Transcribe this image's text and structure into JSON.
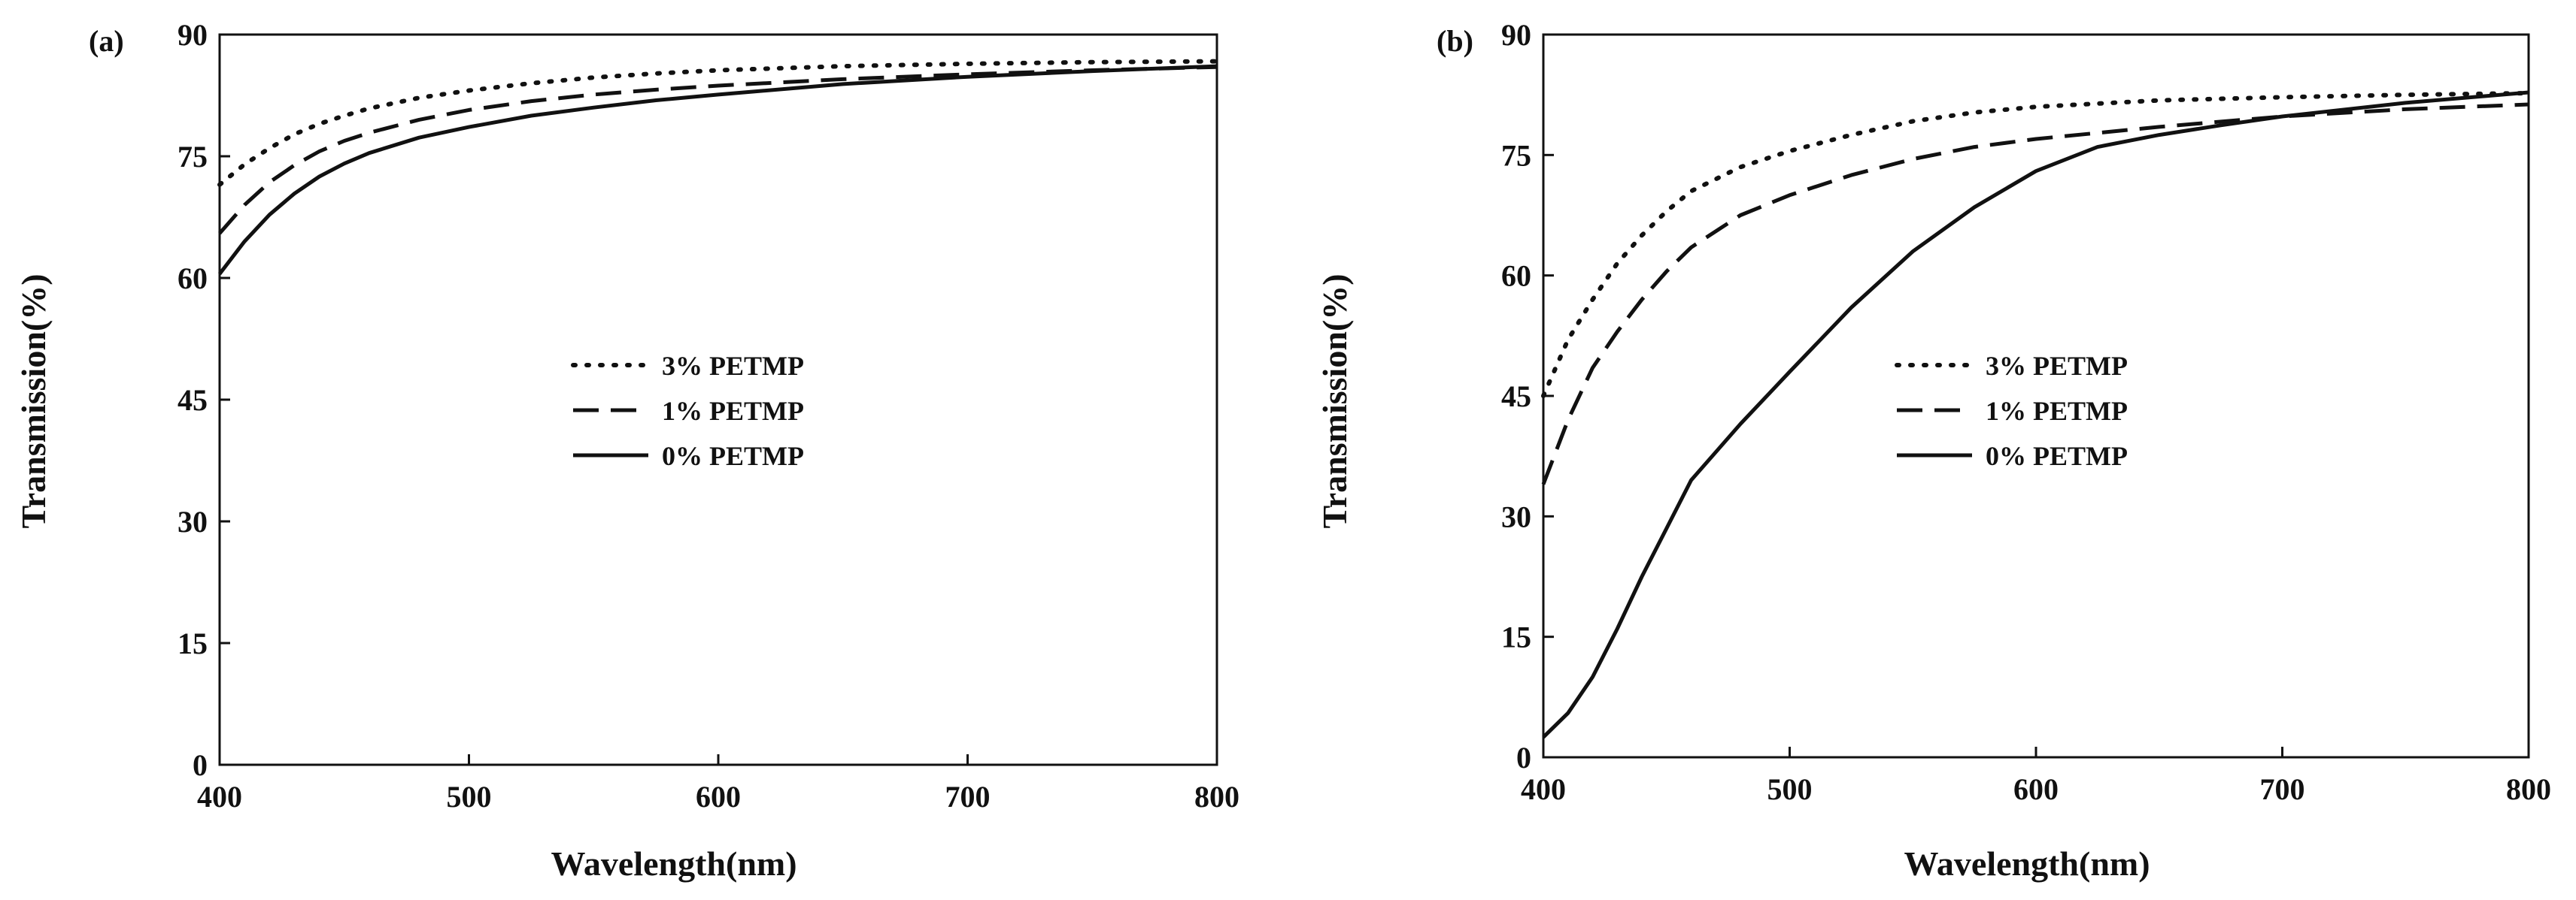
{
  "chart_data": [
    {
      "type": "line",
      "panel_label": "(a)",
      "xlabel": "Wavelength(nm)",
      "ylabel": "Transmission(%)",
      "xlim": [
        400,
        800
      ],
      "ylim": [
        0,
        90
      ],
      "xticks": [
        400,
        500,
        600,
        700,
        800
      ],
      "yticks": [
        0,
        15,
        30,
        45,
        60,
        75,
        90
      ],
      "grid": false,
      "legend_position": "center-left",
      "series": [
        {
          "name": "3% PETMP",
          "style": "dotted",
          "x": [
            400,
            410,
            420,
            430,
            440,
            450,
            460,
            480,
            500,
            525,
            550,
            575,
            600,
            650,
            700,
            750,
            800
          ],
          "y": [
            71.5,
            74.0,
            76.0,
            77.7,
            79.0,
            80.0,
            80.9,
            82.2,
            83.1,
            84.0,
            84.7,
            85.2,
            85.6,
            86.1,
            86.4,
            86.6,
            86.7
          ]
        },
        {
          "name": "1% PETMP",
          "style": "dashed",
          "x": [
            400,
            410,
            420,
            430,
            440,
            450,
            460,
            480,
            500,
            525,
            550,
            575,
            600,
            650,
            700,
            750,
            800
          ],
          "y": [
            65.5,
            69.0,
            71.8,
            73.9,
            75.6,
            76.9,
            77.9,
            79.5,
            80.7,
            81.8,
            82.6,
            83.2,
            83.7,
            84.5,
            85.1,
            85.6,
            86.0
          ]
        },
        {
          "name": "0% PETMP",
          "style": "solid",
          "x": [
            400,
            410,
            420,
            430,
            440,
            450,
            460,
            480,
            500,
            525,
            550,
            575,
            600,
            650,
            700,
            750,
            800
          ],
          "y": [
            60.5,
            64.5,
            67.8,
            70.4,
            72.5,
            74.1,
            75.4,
            77.3,
            78.6,
            80.0,
            81.0,
            81.9,
            82.6,
            83.9,
            84.8,
            85.5,
            86.1
          ]
        }
      ]
    },
    {
      "type": "line",
      "panel_label": "(b)",
      "xlabel": "Wavelength(nm)",
      "ylabel": "Transmission(%)",
      "xlim": [
        400,
        800
      ],
      "ylim": [
        0,
        90
      ],
      "xticks": [
        400,
        500,
        600,
        700,
        800
      ],
      "yticks": [
        0,
        15,
        30,
        45,
        60,
        75,
        90
      ],
      "grid": false,
      "legend_position": "center",
      "series": [
        {
          "name": "3% PETMP",
          "style": "dotted",
          "x": [
            400,
            410,
            420,
            430,
            440,
            450,
            460,
            480,
            500,
            525,
            550,
            575,
            600,
            650,
            700,
            750,
            800
          ],
          "y": [
            45.0,
            52.0,
            57.0,
            61.5,
            65.0,
            68.0,
            70.5,
            73.5,
            75.5,
            77.5,
            79.2,
            80.3,
            81.0,
            81.8,
            82.2,
            82.5,
            82.7
          ]
        },
        {
          "name": "1% PETMP",
          "style": "dashed",
          "x": [
            400,
            410,
            420,
            430,
            440,
            450,
            460,
            480,
            500,
            525,
            550,
            575,
            600,
            650,
            700,
            750,
            800
          ],
          "y": [
            34.0,
            42.0,
            48.5,
            53.0,
            57.0,
            60.5,
            63.5,
            67.5,
            70.0,
            72.5,
            74.5,
            76.0,
            77.0,
            78.5,
            79.8,
            80.7,
            81.3
          ]
        },
        {
          "name": "0% PETMP",
          "style": "solid",
          "x": [
            400,
            410,
            420,
            430,
            440,
            450,
            460,
            480,
            500,
            525,
            550,
            575,
            600,
            625,
            650,
            675,
            700,
            750,
            800
          ],
          "y": [
            2.5,
            5.5,
            10.0,
            16.0,
            22.5,
            28.5,
            34.5,
            41.5,
            48.0,
            56.0,
            63.0,
            68.5,
            73.0,
            76.0,
            77.5,
            78.7,
            79.8,
            81.5,
            82.8
          ]
        }
      ]
    }
  ]
}
